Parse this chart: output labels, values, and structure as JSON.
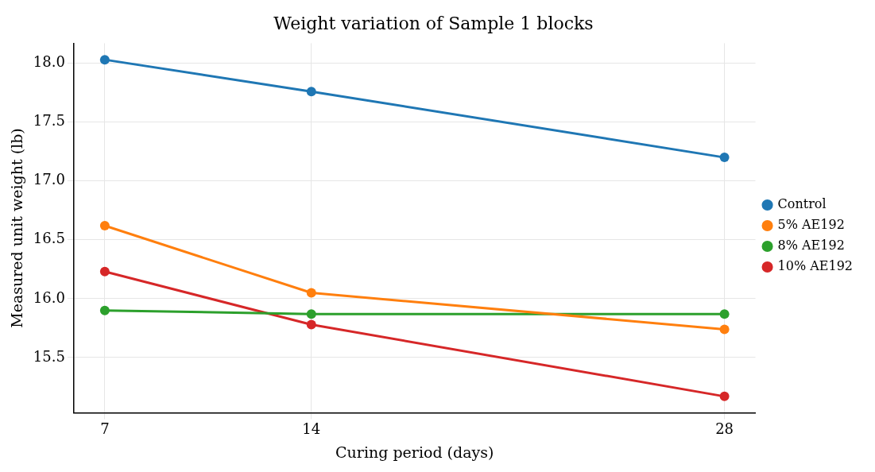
{
  "chart_data": {
    "type": "line",
    "title": "Weight variation of Sample 1 blocks",
    "xlabel": "Curing period (days)",
    "ylabel": "Measured unit weight (lb)",
    "x": [
      7,
      14,
      28
    ],
    "xlim": [
      5.95,
      29.05
    ],
    "xticks": [
      7,
      14,
      28
    ],
    "ylim": [
      15.03,
      18.17
    ],
    "yticks": [
      15.5,
      {
        "value": 16,
        "label": "16.0"
      },
      16.5,
      {
        "value": 17,
        "label": "17.0"
      },
      17.5,
      {
        "value": 18,
        "label": "18.0"
      }
    ],
    "grid": true,
    "legend": "right",
    "marker": "circle",
    "line_style": "solid",
    "series": [
      {
        "name": "Control",
        "color": "#1f77b4",
        "values": [
          18.03,
          17.76,
          17.2
        ]
      },
      {
        "name": "5% AE192",
        "color": "#ff7f0e",
        "values": [
          16.62,
          16.05,
          15.74
        ]
      },
      {
        "name": "8% AE192",
        "color": "#2ca02c",
        "values": [
          15.9,
          15.87,
          15.87
        ]
      },
      {
        "name": "10% AE192",
        "color": "#d62728",
        "values": [
          16.23,
          15.78,
          15.17
        ]
      }
    ]
  }
}
